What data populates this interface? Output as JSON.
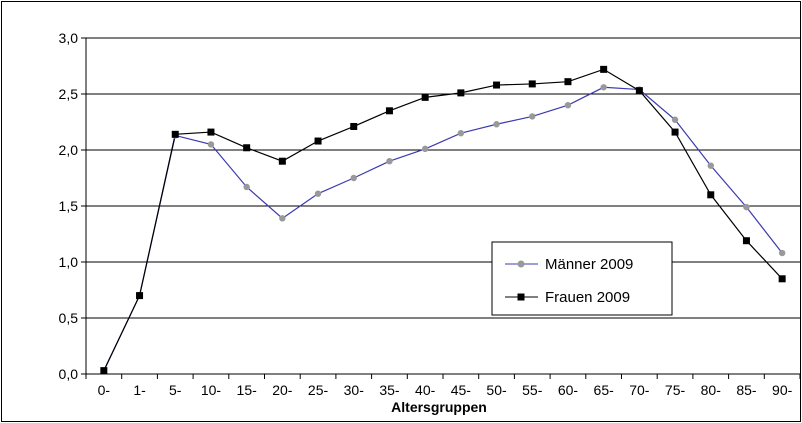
{
  "chart_data": {
    "type": "line",
    "title": "",
    "xlabel": "Altersgruppen",
    "ylabel": "",
    "categories": [
      "0-",
      "1-",
      "5-",
      "10-",
      "15-",
      "20-",
      "25-",
      "30-",
      "35-",
      "40-",
      "45-",
      "50-",
      "55-",
      "60-",
      "65-",
      "70-",
      "75-",
      "80-",
      "85-",
      "90-"
    ],
    "ylim": [
      0,
      3
    ],
    "yticks": [
      "0,0",
      "0,5",
      "1,0",
      "1,5",
      "2,0",
      "2,5",
      "3,0"
    ],
    "ytick_values": [
      0,
      0.5,
      1.0,
      1.5,
      2.0,
      2.5,
      3.0
    ],
    "grid": true,
    "legend_position": "lower-right",
    "series": [
      {
        "name": "Männer 2009",
        "color": "#3b3bb0",
        "marker": "circle",
        "marker_color": "#999999",
        "values": [
          0.03,
          0.7,
          2.13,
          2.05,
          1.67,
          1.39,
          1.61,
          1.75,
          1.9,
          2.01,
          2.15,
          2.23,
          2.3,
          2.4,
          2.56,
          2.54,
          2.27,
          1.86,
          1.49,
          1.08
        ]
      },
      {
        "name": "Frauen 2009",
        "color": "#000000",
        "marker": "square",
        "marker_color": "#000000",
        "values": [
          0.03,
          0.7,
          2.14,
          2.16,
          2.02,
          1.9,
          2.08,
          2.21,
          2.35,
          2.47,
          2.51,
          2.58,
          2.59,
          2.61,
          2.72,
          2.53,
          2.16,
          1.6,
          1.19,
          0.85
        ]
      }
    ]
  }
}
